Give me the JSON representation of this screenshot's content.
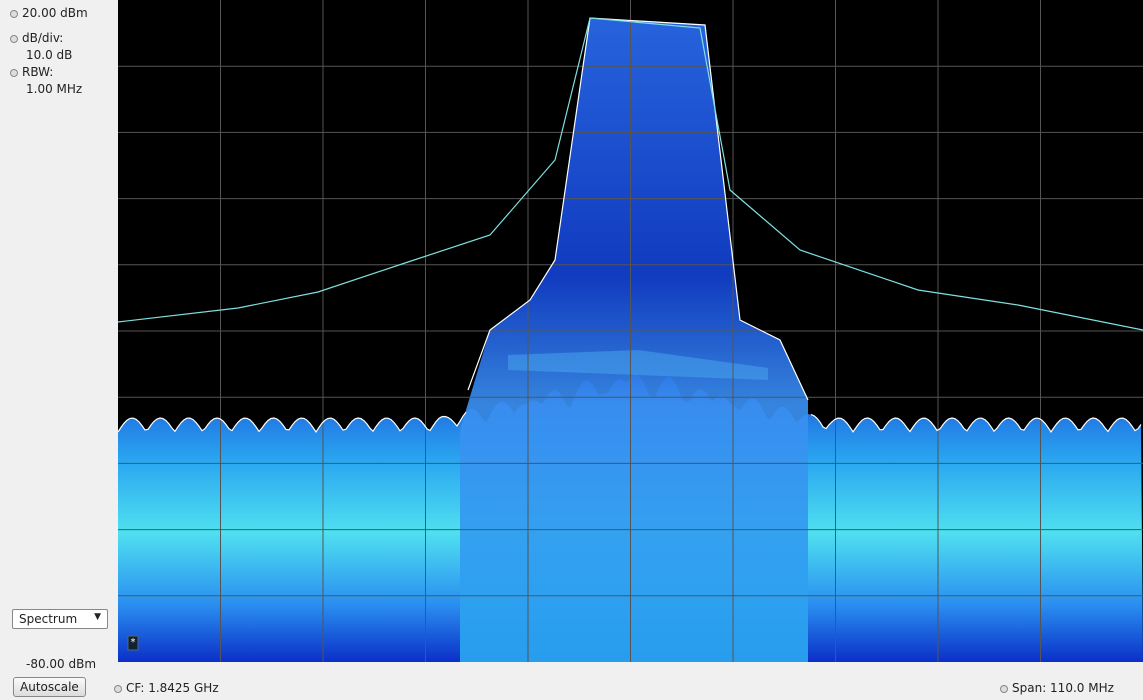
{
  "panel": {
    "ref_level": "20.00 dBm",
    "scale_label": "dB/div:",
    "scale_value": "10.0 dB",
    "rbw_label": "RBW:",
    "rbw_value": "1.00 MHz",
    "mode": "Spectrum",
    "bottom_level": "-80.00 dBm",
    "autoscale": "Autoscale"
  },
  "plot": {
    "marker": "*"
  },
  "status": {
    "center_frequency": "CF: 1.8425 GHz",
    "span": "Span: 110.0 MHz"
  }
}
